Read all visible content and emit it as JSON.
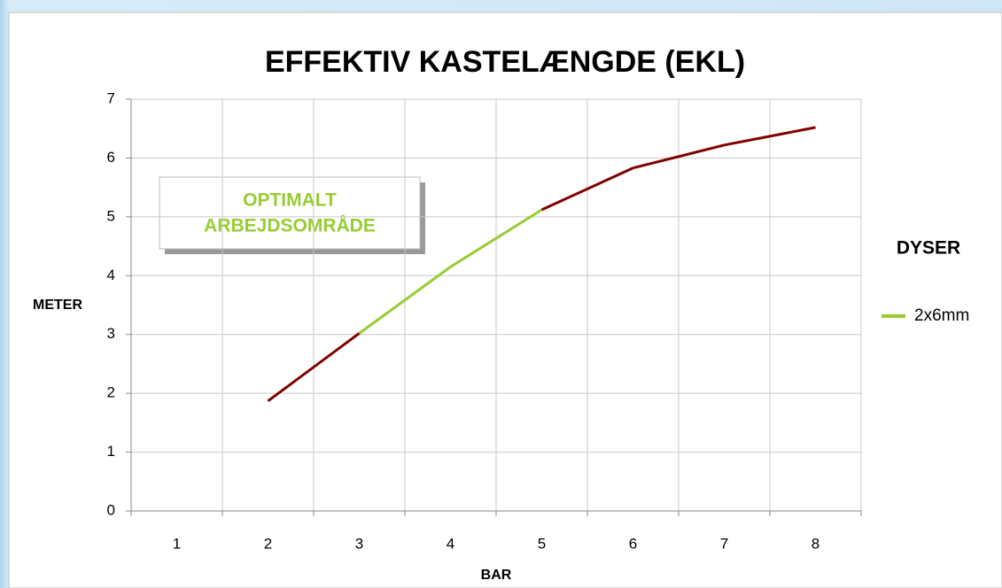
{
  "chart_data": {
    "type": "line",
    "title": "EFFEKTIV KASTELÆNGDE (EKL)",
    "x_label": "BAR",
    "y_label": "METER",
    "categories": [
      "1",
      "2",
      "3",
      "4",
      "5",
      "6",
      "7",
      "8"
    ],
    "series": [
      {
        "name": "2x6mm",
        "color": "#99cc33",
        "values": [
          null,
          1.87,
          3.02,
          4.15,
          5.12,
          5.83,
          6.22,
          6.52
        ],
        "segment_colors": [
          "#800000",
          "#800000",
          "#99cc33",
          "#99cc33",
          "#800000",
          "#800000",
          "#800000"
        ]
      }
    ],
    "legend_title": "DYSER",
    "legend": "right",
    "annotation": [
      "OPTIMALT",
      "ARBEJDSOMRÅDE"
    ],
    "ylim": [
      0,
      7
    ],
    "yticks": [
      0,
      1,
      2,
      3,
      4,
      5,
      6,
      7
    ],
    "grid": true
  }
}
